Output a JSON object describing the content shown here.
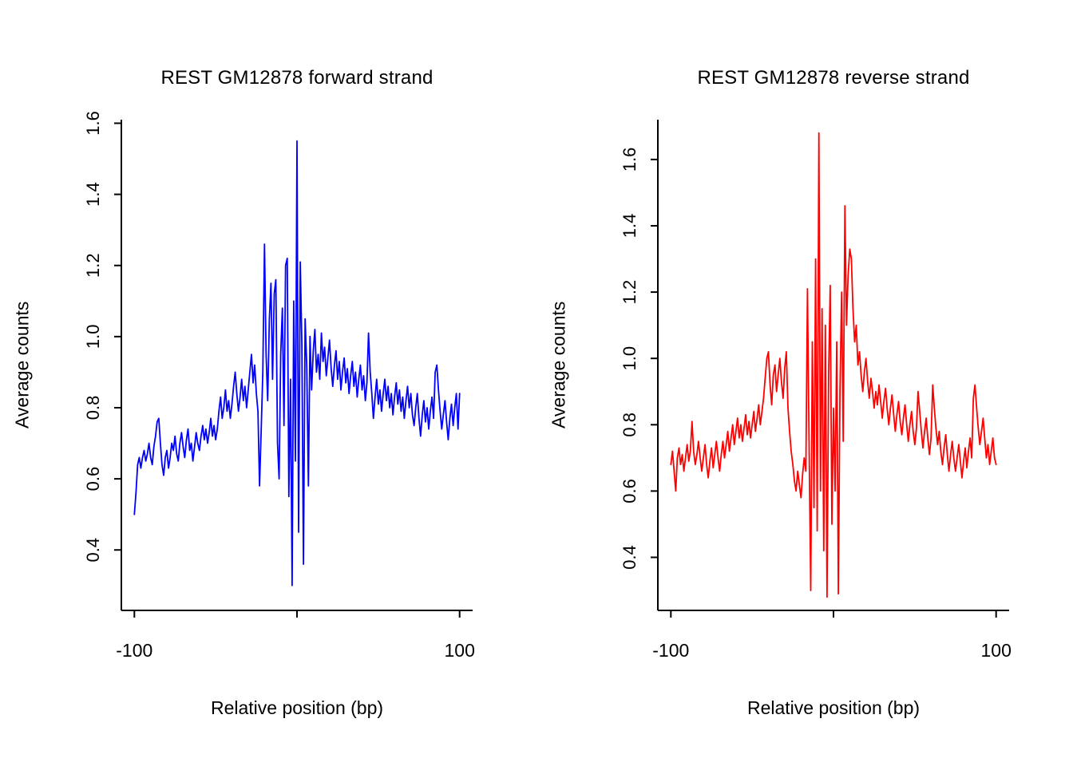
{
  "figure": {
    "background": "#FFFFFF",
    "axis_color": "#000000"
  },
  "chart_data": [
    {
      "type": "line",
      "title": "REST GM12878 forward strand",
      "xlabel": "Relative position (bp)",
      "ylabel": "Average counts",
      "legend": "none",
      "grid": false,
      "color": "#0000FF",
      "xlim": [
        -108,
        108
      ],
      "ylim": [
        0.23,
        1.61
      ],
      "x_start": -100,
      "x_step": 1,
      "x_ticks": [
        {
          "value": -100,
          "label": "-100"
        },
        {
          "value": 0,
          "label": ""
        },
        {
          "value": 100,
          "label": "100"
        }
      ],
      "y_ticks": [
        {
          "value": 0.4,
          "label": "0.4"
        },
        {
          "value": 0.6,
          "label": "0.6"
        },
        {
          "value": 0.8,
          "label": "0.8"
        },
        {
          "value": 1.0,
          "label": "1.0"
        },
        {
          "value": 1.2,
          "label": "1.2"
        },
        {
          "value": 1.4,
          "label": "1.4"
        },
        {
          "value": 1.6,
          "label": "1.6"
        }
      ],
      "values": [
        0.5,
        0.56,
        0.64,
        0.66,
        0.63,
        0.66,
        0.68,
        0.65,
        0.67,
        0.7,
        0.66,
        0.64,
        0.69,
        0.72,
        0.76,
        0.77,
        0.7,
        0.64,
        0.61,
        0.66,
        0.68,
        0.63,
        0.66,
        0.7,
        0.68,
        0.72,
        0.67,
        0.65,
        0.7,
        0.73,
        0.69,
        0.66,
        0.71,
        0.74,
        0.68,
        0.7,
        0.65,
        0.69,
        0.73,
        0.7,
        0.68,
        0.72,
        0.75,
        0.71,
        0.74,
        0.7,
        0.73,
        0.77,
        0.72,
        0.75,
        0.71,
        0.74,
        0.79,
        0.83,
        0.77,
        0.8,
        0.85,
        0.79,
        0.82,
        0.77,
        0.81,
        0.86,
        0.9,
        0.84,
        0.79,
        0.83,
        0.88,
        0.82,
        0.86,
        0.8,
        0.85,
        0.9,
        0.95,
        0.87,
        0.92,
        0.84,
        0.79,
        0.58,
        0.74,
        0.9,
        1.26,
        0.95,
        0.82,
        1.05,
        1.15,
        0.88,
        1.12,
        1.16,
        0.7,
        0.6,
        0.95,
        1.08,
        0.75,
        1.2,
        1.22,
        0.55,
        0.88,
        0.3,
        1.1,
        0.65,
        1.55,
        0.45,
        1.21,
        0.98,
        0.36,
        1.05,
        0.92,
        0.58,
        1.0,
        0.85,
        0.96,
        1.02,
        0.9,
        0.95,
        0.88,
        1.01,
        0.93,
        0.97,
        0.89,
        0.94,
        0.99,
        0.91,
        0.86,
        0.92,
        0.96,
        0.88,
        0.93,
        0.85,
        0.9,
        0.94,
        0.87,
        0.91,
        0.84,
        0.89,
        0.93,
        0.86,
        0.9,
        0.83,
        0.88,
        0.92,
        0.85,
        0.89,
        0.82,
        0.87,
        1.01,
        0.9,
        0.84,
        0.77,
        0.83,
        0.88,
        0.81,
        0.85,
        0.79,
        0.84,
        0.88,
        0.82,
        0.86,
        0.8,
        0.84,
        0.78,
        0.83,
        0.87,
        0.81,
        0.85,
        0.79,
        0.83,
        0.77,
        0.82,
        0.86,
        0.8,
        0.84,
        0.78,
        0.75,
        0.8,
        0.84,
        0.77,
        0.72,
        0.78,
        0.82,
        0.76,
        0.8,
        0.74,
        0.79,
        0.83,
        0.77,
        0.9,
        0.92,
        0.85,
        0.79,
        0.74,
        0.78,
        0.82,
        0.76,
        0.71,
        0.77,
        0.81,
        0.75,
        0.8,
        0.84,
        0.74,
        0.84
      ]
    },
    {
      "type": "line",
      "title": "REST GM12878 reverse strand",
      "xlabel": "Relative position (bp)",
      "ylabel": "Average counts",
      "legend": "none",
      "grid": false,
      "color": "#FF0000",
      "xlim": [
        -108,
        108
      ],
      "ylim": [
        0.24,
        1.72
      ],
      "x_start": -100,
      "x_step": 1,
      "x_ticks": [
        {
          "value": -100,
          "label": "-100"
        },
        {
          "value": 0,
          "label": ""
        },
        {
          "value": 100,
          "label": "100"
        }
      ],
      "y_ticks": [
        {
          "value": 0.4,
          "label": "0.4"
        },
        {
          "value": 0.6,
          "label": "0.6"
        },
        {
          "value": 0.8,
          "label": "0.8"
        },
        {
          "value": 1.0,
          "label": "1.0"
        },
        {
          "value": 1.2,
          "label": "1.2"
        },
        {
          "value": 1.4,
          "label": "1.4"
        },
        {
          "value": 1.6,
          "label": "1.6"
        }
      ],
      "values": [
        0.68,
        0.72,
        0.66,
        0.6,
        0.7,
        0.73,
        0.68,
        0.71,
        0.66,
        0.7,
        0.74,
        0.69,
        0.72,
        0.81,
        0.72,
        0.68,
        0.71,
        0.75,
        0.7,
        0.66,
        0.7,
        0.74,
        0.68,
        0.64,
        0.69,
        0.73,
        0.67,
        0.71,
        0.75,
        0.7,
        0.66,
        0.71,
        0.75,
        0.7,
        0.74,
        0.78,
        0.72,
        0.76,
        0.8,
        0.74,
        0.78,
        0.82,
        0.76,
        0.8,
        0.75,
        0.79,
        0.83,
        0.77,
        0.81,
        0.76,
        0.8,
        0.84,
        0.78,
        0.82,
        0.86,
        0.8,
        0.84,
        0.88,
        0.94,
        1.0,
        1.02,
        0.92,
        0.86,
        0.95,
        0.98,
        0.9,
        0.95,
        1.0,
        0.93,
        0.88,
        0.97,
        1.02,
        0.85,
        0.78,
        0.72,
        0.68,
        0.63,
        0.6,
        0.66,
        0.62,
        0.58,
        0.65,
        0.7,
        0.66,
        1.21,
        0.75,
        0.3,
        1.05,
        0.55,
        1.3,
        0.48,
        1.68,
        0.6,
        1.15,
        0.42,
        1.1,
        0.28,
        0.95,
        1.22,
        0.5,
        0.85,
        0.6,
        1.05,
        0.29,
        0.9,
        1.2,
        0.75,
        1.46,
        1.1,
        1.25,
        1.33,
        1.3,
        1.15,
        1.05,
        1.1,
        0.98,
        1.02,
        0.95,
        0.9,
        0.96,
        1.0,
        0.93,
        0.88,
        0.94,
        0.9,
        0.85,
        0.9,
        0.86,
        0.92,
        0.87,
        0.82,
        0.87,
        0.91,
        0.85,
        0.8,
        0.85,
        0.89,
        0.83,
        0.78,
        0.83,
        0.87,
        0.81,
        0.77,
        0.82,
        0.86,
        0.8,
        0.75,
        0.8,
        0.84,
        0.78,
        0.74,
        0.79,
        0.9,
        0.84,
        0.78,
        0.73,
        0.78,
        0.82,
        0.76,
        0.71,
        0.76,
        0.92,
        0.85,
        0.79,
        0.74,
        0.78,
        0.72,
        0.68,
        0.73,
        0.77,
        0.71,
        0.66,
        0.71,
        0.75,
        0.7,
        0.66,
        0.7,
        0.74,
        0.69,
        0.64,
        0.69,
        0.73,
        0.67,
        0.72,
        0.76,
        0.7,
        0.88,
        0.92,
        0.85,
        0.79,
        0.74,
        0.78,
        0.82,
        0.76,
        0.7,
        0.74,
        0.68,
        0.72,
        0.76,
        0.7,
        0.68
      ]
    }
  ]
}
